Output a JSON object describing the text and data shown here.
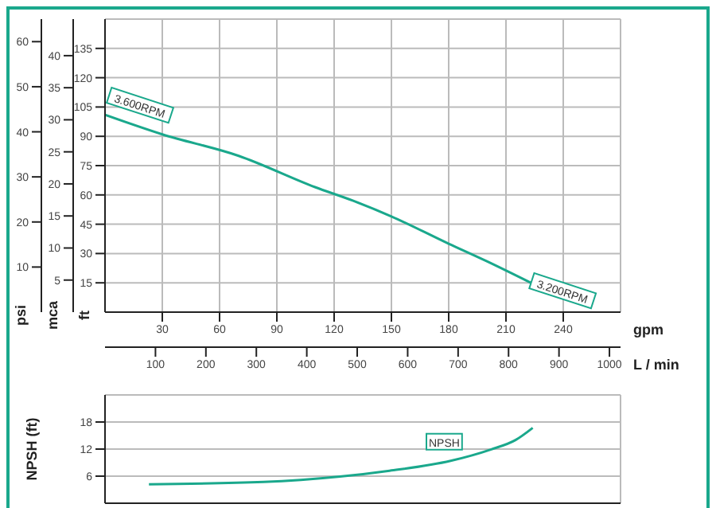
{
  "chart_data": [
    {
      "type": "line",
      "ylabel": "ft",
      "y2label": "mca",
      "y3label": "psi",
      "xlabel": "gpm",
      "x2label": "L / min",
      "xlim": [
        0,
        270
      ],
      "xticks": [
        30,
        60,
        90,
        120,
        150,
        180,
        210,
        240
      ],
      "x2lim": [
        0,
        1022
      ],
      "x2ticks": [
        100,
        200,
        300,
        400,
        500,
        600,
        700,
        800,
        900,
        1000
      ],
      "ylim": [
        0,
        150
      ],
      "yticks": [
        15,
        30,
        45,
        60,
        75,
        90,
        105,
        120,
        135
      ],
      "y2lim": [
        0,
        45.7
      ],
      "y2ticks": [
        5,
        10,
        15,
        20,
        25,
        30,
        35,
        40
      ],
      "y3lim": [
        0,
        65
      ],
      "y3ticks": [
        10,
        20,
        30,
        40,
        50,
        60
      ],
      "grid": true,
      "line_style": "solid",
      "series": [
        {
          "color": "#1aa88c",
          "x": [
            0,
            30,
            70,
            110,
            130,
            150,
            180,
            200,
            223
          ],
          "values": [
            101,
            91,
            80,
            64,
            57,
            49,
            35,
            26,
            15
          ]
        }
      ],
      "annotations": [
        {
          "text": "3.600RPM",
          "x": 0,
          "y": 101
        },
        {
          "text": "3.200RPM",
          "x": 223,
          "y": 15
        }
      ]
    },
    {
      "type": "line",
      "ylabel": "NPSH (ft)",
      "xlim": [
        0,
        270
      ],
      "ylim": [
        0,
        24
      ],
      "yticks": [
        6,
        12,
        18
      ],
      "grid": true,
      "tick_labels": "y",
      "line_style": "solid",
      "series": [
        {
          "name": "NPSH",
          "color": "#1aa88c",
          "x": [
            23,
            83,
            123,
            149,
            181,
            202,
            215,
            224
          ],
          "values": [
            4.2,
            4.7,
            5.9,
            7.2,
            9.4,
            11.9,
            14,
            16.7
          ]
        }
      ]
    }
  ]
}
